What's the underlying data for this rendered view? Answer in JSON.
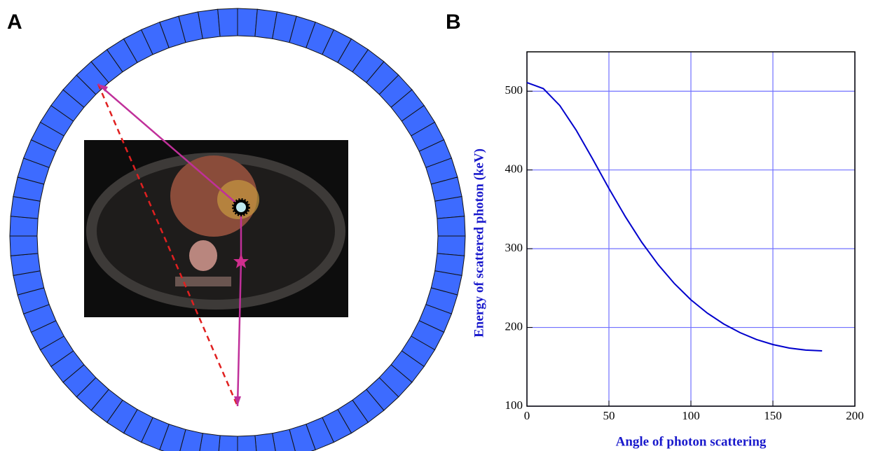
{
  "panel_a": {
    "label": "A"
  },
  "chart_data": {
    "type": "line",
    "panel_label": "B",
    "xlabel": "Angle  of  photon  scattering",
    "ylabel": "Energy of scattered photon (keV)",
    "x": [
      0,
      10,
      20,
      30,
      40,
      50,
      60,
      70,
      80,
      90,
      100,
      110,
      120,
      130,
      140,
      150,
      160,
      170,
      180
    ],
    "series": [
      {
        "color": "#0000cc",
        "values": [
          511,
          503.3,
          481.9,
          450.6,
          414.1,
          376.5,
          340.7,
          308.2,
          279.8,
          255.5,
          235.1,
          218.2,
          204.4,
          193.4,
          184.7,
          178.3,
          173.8,
          171.2,
          170.3
        ]
      }
    ],
    "xlim": [
      0,
      200
    ],
    "ylim": [
      100,
      550
    ],
    "xticks": [
      0,
      50,
      100,
      150,
      200
    ],
    "yticks": [
      100,
      200,
      300,
      400,
      500
    ],
    "grid": true,
    "grid_color": "#7070ff"
  }
}
